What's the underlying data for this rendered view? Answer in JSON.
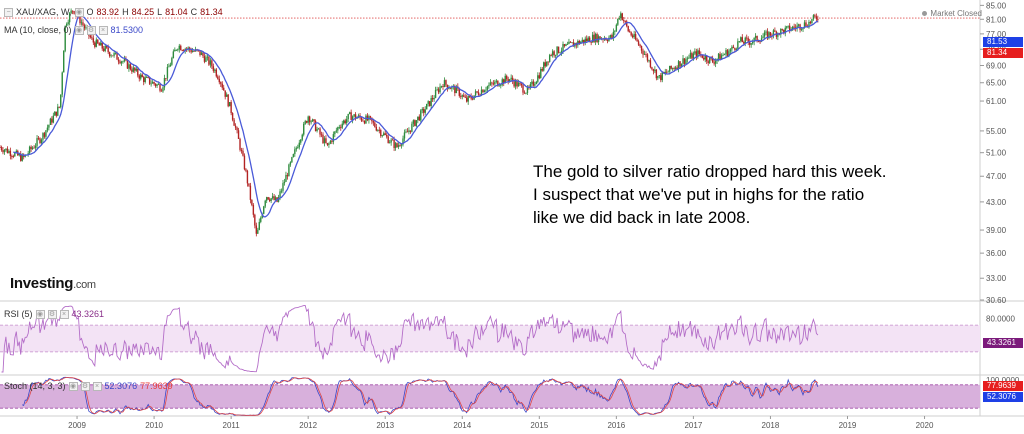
{
  "header": {
    "symbol": "XAU/XAG, W,",
    "open_label": "O",
    "open": "83.92",
    "high_label": "H",
    "high": "84.25",
    "low_label": "L",
    "low": "81.04",
    "close_label": "C",
    "close": "81.34",
    "ma_label": "MA (10, close, 0)",
    "ma_value": "81.5300",
    "market_status": "Market Closed"
  },
  "rsi_legend": {
    "label": "RSI (5)",
    "value": "43.3261"
  },
  "stoch_legend": {
    "label": "Stoch (14, 3, 3)",
    "k_value": "52.3076",
    "d_value": "77.9639"
  },
  "annotation": "The gold to silver ratio dropped hard this week. I suspect that we've put in highs for the ratio like we did back in late 2008.",
  "brand": {
    "name": "Investing",
    "suffix": ".com"
  },
  "price_labels": {
    "ma": {
      "text": "81.53",
      "color": "#1e40e6"
    },
    "close": {
      "text": "81.34",
      "color": "#e61e1e"
    },
    "rsi": {
      "text": "43.3261",
      "color": "#7b1a7b"
    },
    "stoch_d": {
      "text": "77.9639",
      "color": "#e61e1e"
    },
    "stoch_k": {
      "text": "52.3076",
      "color": "#1e40e6"
    }
  },
  "colors": {
    "up": "#2e8b3d",
    "down": "#b22222",
    "ma": "#4a5ad8",
    "rsi": "#b46ec8",
    "stoch_band": "#d8b0dc",
    "rsi_band": "#f3e3f5"
  },
  "chart_data": [
    {
      "type": "candlestick",
      "title": "XAU/XAG, W",
      "x_axis_labels": [
        "2009",
        "2010",
        "2011",
        "2012",
        "2013",
        "2014",
        "2015",
        "2016",
        "2017",
        "2018",
        "2019",
        "2020"
      ],
      "y_axis_labels": [
        "85.00",
        "81.00",
        "77.00",
        "73.00",
        "69.00",
        "65.00",
        "61.00",
        "55.00",
        "51.00",
        "47.00",
        "43.00",
        "39.00",
        "36.00",
        "33.00",
        "30.60"
      ],
      "ylim": [
        30.6,
        86
      ],
      "reference_line": 81.34,
      "anchors": {
        "x": [
          2008.0,
          2008.3,
          2008.55,
          2008.78,
          2008.85,
          2008.95,
          2009.2,
          2009.6,
          2009.85,
          2010.1,
          2010.3,
          2010.6,
          2010.75,
          2010.85,
          2011.0,
          2011.2,
          2011.33,
          2011.45,
          2011.6,
          2011.8,
          2012.0,
          2012.25,
          2012.4,
          2012.55,
          2012.8,
          2013.0,
          2013.15,
          2013.35,
          2013.55,
          2013.75,
          2013.95,
          2014.05,
          2014.3,
          2014.6,
          2014.85,
          2015.0,
          2015.15,
          2015.4,
          2015.7,
          2015.95,
          2016.05,
          2016.15,
          2016.3,
          2016.55,
          2016.85,
          2017.05,
          2017.25,
          2017.5,
          2017.6,
          2017.75,
          2018.0,
          2018.2,
          2018.35,
          2018.5,
          2018.62
        ],
        "y": [
          52,
          50,
          54,
          60,
          80,
          84,
          75,
          70,
          66,
          64,
          74,
          72,
          69,
          66,
          59,
          47,
          38,
          44,
          43,
          50,
          58,
          52,
          56,
          58,
          57,
          54,
          52,
          56,
          60,
          65,
          63,
          61,
          64,
          66,
          63,
          67,
          72,
          74,
          76,
          76,
          83,
          78,
          74,
          66,
          70,
          72,
          70,
          73,
          75,
          75,
          77,
          78,
          79,
          80,
          82
        ]
      },
      "ma_period": 10
    },
    {
      "type": "line",
      "title": "RSI (5)",
      "y_axis_labels": [
        "80.0000"
      ],
      "band": [
        30,
        70
      ],
      "last": 43.3261
    },
    {
      "type": "line",
      "title": "Stoch (14, 3, 3)",
      "y_axis_labels": [
        "100.0000"
      ],
      "band": [
        20,
        80
      ],
      "last_k": 52.3076,
      "last_d": 77.9639
    }
  ]
}
